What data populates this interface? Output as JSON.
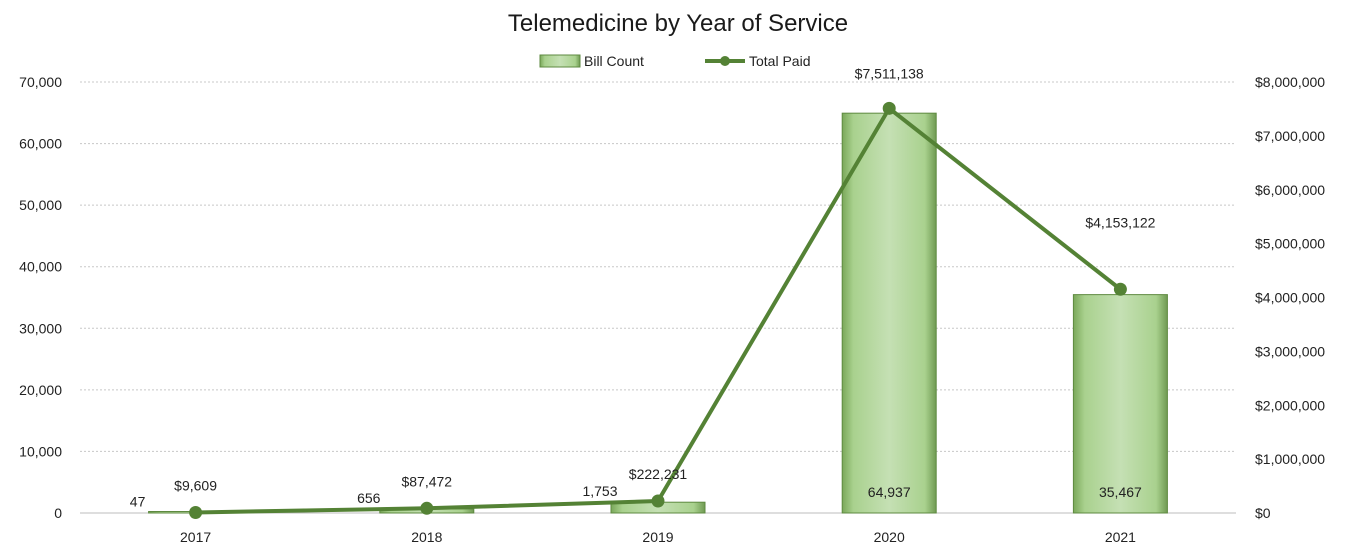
{
  "chart_data": {
    "type": "bar",
    "title": "Telemedicine by Year of Service",
    "categories": [
      "2017",
      "2018",
      "2019",
      "2020",
      "2021"
    ],
    "series": [
      {
        "name": "Bill Count",
        "type": "bar",
        "axis": "left",
        "values": [
          47,
          656,
          1753,
          64937,
          35467
        ],
        "labels": [
          "47",
          "656",
          "1,753",
          "64,937",
          "35,467"
        ],
        "color": "#a9d18e"
      },
      {
        "name": "Total Paid",
        "type": "line",
        "axis": "right",
        "values": [
          9609,
          87472,
          222231,
          7511138,
          4153122
        ],
        "labels": [
          "$9,609",
          "$87,472",
          "$222,231",
          "$7,511,138",
          "$4,153,122"
        ],
        "color": "#548235"
      }
    ],
    "y_left": {
      "ylim": [
        0,
        70000
      ],
      "ticks": [
        "0",
        "10,000",
        "20,000",
        "30,000",
        "40,000",
        "50,000",
        "60,000",
        "70,000"
      ]
    },
    "y_right": {
      "ylim": [
        0,
        8000000
      ],
      "ticks": [
        "$0",
        "$1,000,000",
        "$2,000,000",
        "$3,000,000",
        "$4,000,000",
        "$5,000,000",
        "$6,000,000",
        "$7,000,000",
        "$8,000,000"
      ]
    },
    "grid": true,
    "legend": "top-center"
  }
}
